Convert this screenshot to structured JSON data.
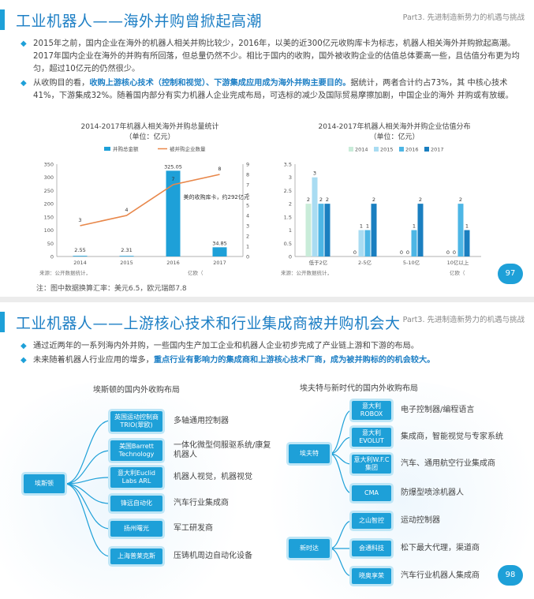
{
  "slide1": {
    "title": "工业机器人——海外并购曾掀起高潮",
    "part": "Part3. 先进制造新势力的机遇与挑战",
    "bullet1": "2015年之前，国内企业在海外的机器人相关并购比较少，2016年，以美的近300亿元收购库卡为标志，机器人相关海外并购掀起高潮。2017年国内企业在海外的并购有所回落，但总量仍然不少。相比于国内的收购，国外被收购企业的估值总体要高一些，且估值分布更为均匀，超过10亿元的仍然很少。",
    "bullet2_pre": "从收购目的看，",
    "bullet2_hl": "收购上游核心技术（控制和视觉）、下游集成应用成为海外并购主要目的。",
    "bullet2_post": "据统计，两者合计约占73%，其 中核心技术41%，下游集成32%。随着国内部分有实力机器人企业完成布局，可选标的减少及国际贸易摩擦加剧，中国企业的海外 并购或有放缓。",
    "note": "注：图中数据换算汇率：美元6.5，欧元瑞郎7.8",
    "page": "97"
  },
  "chart_data": [
    {
      "type": "bar",
      "title": "2014-2017年机器人相关海外并购总量统计",
      "subtitle": "（单位：亿元）",
      "categories": [
        "2014",
        "2015",
        "2016",
        "2017"
      ],
      "series": [
        {
          "name": "并购总金额",
          "type": "bar",
          "values": [
            2.55,
            2.31,
            325.05,
            34.85
          ],
          "color": "#1ea0d8"
        },
        {
          "name": "被并购企业数量",
          "type": "line",
          "values": [
            3,
            4,
            7,
            8
          ],
          "color": "#e8874a"
        }
      ],
      "ylim": [
        0,
        350
      ],
      "y_ticks": [
        0,
        50,
        100,
        150,
        200,
        250,
        300,
        350
      ],
      "y2lim": [
        0,
        9
      ],
      "y2_ticks": [
        0,
        1,
        2,
        3,
        4,
        5,
        6,
        7,
        8,
        9
      ],
      "annotation": "美的收购库卡，约292亿元",
      "source": "来源：公开数据统计，",
      "unit_label": "亿欧（",
      "legend": "top"
    },
    {
      "type": "bar",
      "title": "2014-2017年机器人相关海外并购企业估值分布",
      "subtitle": "（单位：亿元）",
      "categories": [
        "低于2亿",
        "2-5亿",
        "5-10亿",
        "10亿以上"
      ],
      "series": [
        {
          "name": "2014",
          "values": [
            2,
            0,
            0,
            0
          ],
          "color": "#c9ecd9"
        },
        {
          "name": "2015",
          "values": [
            3,
            1,
            0,
            0
          ],
          "color": "#a9dcf2"
        },
        {
          "name": "2016",
          "values": [
            2,
            1,
            1,
            2
          ],
          "color": "#4db6e5"
        },
        {
          "name": "2017",
          "values": [
            2,
            2,
            2,
            1
          ],
          "color": "#1a7fc0"
        }
      ],
      "labels": [
        [
          "2",
          "3",
          "2",
          "2"
        ],
        [
          "0",
          "1",
          "1",
          "2"
        ],
        [
          "0",
          "0",
          "1",
          "2"
        ],
        [
          "0",
          "0",
          "2",
          "1"
        ]
      ],
      "ylim": [
        0,
        3.5
      ],
      "y_ticks": [
        0,
        0.5,
        1,
        1.5,
        2,
        2.5,
        3,
        3.5
      ],
      "source": "来源：公开数据统计，",
      "unit_label": "亿欧（",
      "legend": "top"
    }
  ],
  "slide2": {
    "title": "工业机器人——上游核心技术和行业集成商被并购机会大",
    "part": "Part3. 先进制造新势力的机遇与挑战",
    "bullet1": "通过近两年的一系列海内外并购，一些国内生产加工企业和机器人企业初步完成了产业链上游和下游的布局。",
    "bullet2_pre": "未来随着机器人行业应用的增多，",
    "bullet2_hl": "重点行业有影响力的集成商和上游核心技术厂商，成为被并购标的的机会较大。",
    "left_tree": {
      "title": "埃斯顿的国内外收购布局",
      "root": "埃斯顿",
      "children": [
        {
          "node": "英国运动控制商TRIO(翠欧)",
          "desc": "多轴通用控制器"
        },
        {
          "node": "美国Barrett Technology",
          "desc": "一体化微型伺服驱系统/康复机器人"
        },
        {
          "node": "意大利Euclid Labs ARL",
          "desc": "机器人视觉，机器视觉"
        },
        {
          "node": "锋远自动化",
          "desc": "汽车行业集成商"
        },
        {
          "node": "扬州曙光",
          "desc": "军工研发商"
        },
        {
          "node": "上海普莱克斯",
          "desc": "压铸机周边自动化设备"
        }
      ]
    },
    "right_tree": {
      "title": "埃夫特与新时代的国内外收购布局",
      "group1": {
        "root": "埃夫特",
        "children": [
          {
            "node": "意大利ROBOX",
            "desc": "电子控制器/编程语言"
          },
          {
            "node": "意大利EVOLUT",
            "desc": "集成商，智能视觉与专家系统"
          },
          {
            "node": "意大利W.F.C集团",
            "desc": "汽车、通用航空行业集成商"
          },
          {
            "node": "CMA",
            "desc": "防爆型喷涂机器人"
          }
        ]
      },
      "group2": {
        "root": "新时达",
        "children": [
          {
            "node": "之山智控",
            "desc": "运动控制器"
          },
          {
            "node": "会通科技",
            "desc": "松下最大代理，渠道商"
          },
          {
            "node": "晓奥享荣",
            "desc": "汽车行业机器人集成商"
          }
        ]
      }
    },
    "page": "98"
  }
}
